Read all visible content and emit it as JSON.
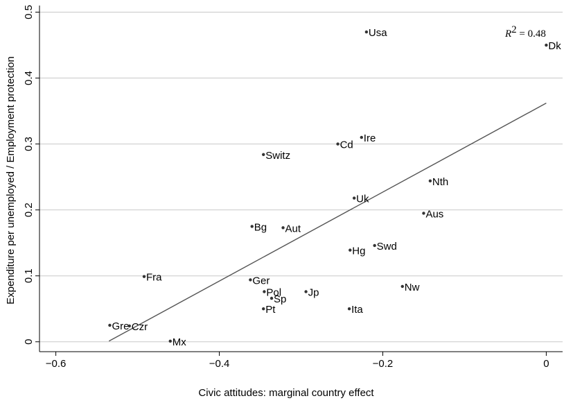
{
  "chart_data": {
    "type": "scatter",
    "xlabel": "Civic attitudes: marginal country effect",
    "ylabel": "Expenditure per unemployed / Employment protection",
    "xlim": [
      -0.62,
      0.02
    ],
    "ylim": [
      -0.015,
      0.51
    ],
    "x_ticks": [
      -0.6,
      -0.4,
      -0.2,
      0
    ],
    "x_tick_labels": [
      "−0.6",
      "−0.4",
      "−0.2",
      "0"
    ],
    "y_ticks": [
      0,
      0.1,
      0.2,
      0.3,
      0.4,
      0.5
    ],
    "y_tick_labels": [
      "0",
      "0.1",
      "0.2",
      "0.3",
      "0.4",
      "0.5"
    ],
    "grid": "horizontal",
    "annotation": {
      "label": "R",
      "superscript": "2",
      "value": " = 0.48"
    },
    "fit_line": {
      "x": [
        -0.535,
        0.0
      ],
      "y": [
        0.001,
        0.362
      ]
    },
    "points": [
      {
        "label": "Usa",
        "x": -0.22,
        "y": 0.47
      },
      {
        "label": "Dk",
        "x": 0.0,
        "y": 0.45
      },
      {
        "label": "Ire",
        "x": -0.226,
        "y": 0.31
      },
      {
        "label": "Cd",
        "x": -0.255,
        "y": 0.3
      },
      {
        "label": "Switz",
        "x": -0.346,
        "y": 0.284
      },
      {
        "label": "Nth",
        "x": -0.142,
        "y": 0.244
      },
      {
        "label": "Uk",
        "x": -0.235,
        "y": 0.218
      },
      {
        "label": "Aus",
        "x": -0.15,
        "y": 0.195
      },
      {
        "label": "Bg",
        "x": -0.36,
        "y": 0.175
      },
      {
        "label": "Aut",
        "x": -0.322,
        "y": 0.173
      },
      {
        "label": "Swd",
        "x": -0.21,
        "y": 0.146
      },
      {
        "label": "Hg",
        "x": -0.24,
        "y": 0.139
      },
      {
        "label": "Fra",
        "x": -0.492,
        "y": 0.099
      },
      {
        "label": "Ger",
        "x": -0.362,
        "y": 0.094
      },
      {
        "label": "Nw",
        "x": -0.176,
        "y": 0.084
      },
      {
        "label": "Pol",
        "x": -0.345,
        "y": 0.076
      },
      {
        "label": "Jp",
        "x": -0.294,
        "y": 0.076
      },
      {
        "label": "Sp",
        "x": -0.336,
        "y": 0.066
      },
      {
        "label": "Pt",
        "x": -0.346,
        "y": 0.05
      },
      {
        "label": "Ita",
        "x": -0.241,
        "y": 0.05
      },
      {
        "label": "Gre",
        "x": -0.534,
        "y": 0.025
      },
      {
        "label": "Czr",
        "x": -0.51,
        "y": 0.024
      },
      {
        "label": "Mx",
        "x": -0.46,
        "y": 0.001
      }
    ]
  }
}
